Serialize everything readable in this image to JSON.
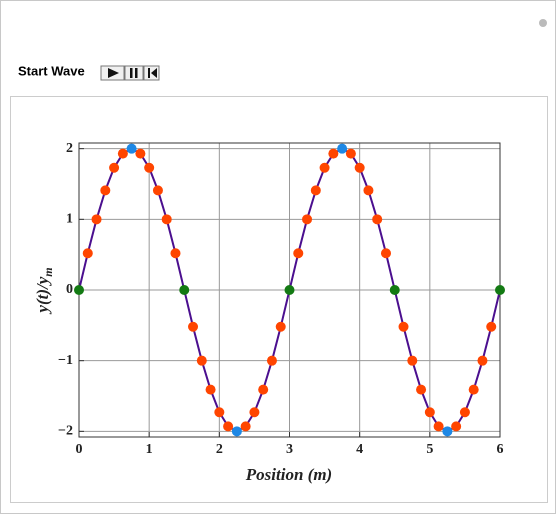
{
  "controls": {
    "label": "Start Wave"
  },
  "chart_data": {
    "type": "line",
    "xlabel": "Position (m)",
    "ylabel": "y(t)/y",
    "ylabel_sub": "m",
    "xlim": [
      0,
      6
    ],
    "ylim": [
      -2.08,
      2.08
    ],
    "xticks": [
      0,
      1,
      2,
      3,
      4,
      5,
      6
    ],
    "yticks": [
      {
        "value": -2,
        "label": "−2"
      },
      {
        "value": -1,
        "label": "−1"
      },
      0,
      1,
      2
    ],
    "grid": true,
    "series": [
      {
        "color": "#4b0f8f",
        "x": [
          0,
          0.125,
          0.25,
          0.375,
          0.5,
          0.625,
          0.75,
          0.875,
          1,
          1.125,
          1.25,
          1.375,
          1.5,
          1.625,
          1.75,
          1.875,
          2,
          2.125,
          2.25,
          2.375,
          2.5,
          2.625,
          2.75,
          2.875,
          3,
          3.125,
          3.25,
          3.375,
          3.5,
          3.625,
          3.75,
          3.875,
          4,
          4.125,
          4.25,
          4.375,
          4.5,
          4.625,
          4.75,
          4.875,
          5,
          5.125,
          5.25,
          5.375,
          5.5,
          5.625,
          5.75,
          5.875,
          6
        ],
        "values": [
          0,
          0.52,
          1,
          1.41,
          1.73,
          1.93,
          2,
          1.93,
          1.73,
          1.41,
          1,
          0.52,
          0,
          -0.52,
          -1,
          -1.41,
          -1.73,
          -1.93,
          -2,
          -1.93,
          -1.73,
          -1.41,
          -1,
          -0.52,
          0,
          0.52,
          1,
          1.41,
          1.73,
          1.93,
          2,
          1.93,
          1.73,
          1.41,
          1,
          0.52,
          0,
          -0.52,
          -1,
          -1.41,
          -1.73,
          -1.93,
          -2,
          -1.93,
          -1.73,
          -1.41,
          -1,
          -0.52,
          0
        ],
        "marker_colors": [
          "#137a13",
          "#ff4500",
          "#ff4500",
          "#ff4500",
          "#ff4500",
          "#ff4500",
          "#1e88e5",
          "#ff4500",
          "#ff4500",
          "#ff4500",
          "#ff4500",
          "#ff4500",
          "#137a13",
          "#ff4500",
          "#ff4500",
          "#ff4500",
          "#ff4500",
          "#ff4500",
          "#1e88e5",
          "#ff4500",
          "#ff4500",
          "#ff4500",
          "#ff4500",
          "#ff4500",
          "#137a13",
          "#ff4500",
          "#ff4500",
          "#ff4500",
          "#ff4500",
          "#ff4500",
          "#1e88e5",
          "#ff4500",
          "#ff4500",
          "#ff4500",
          "#ff4500",
          "#ff4500",
          "#137a13",
          "#ff4500",
          "#ff4500",
          "#ff4500",
          "#ff4500",
          "#ff4500",
          "#1e88e5",
          "#ff4500",
          "#ff4500",
          "#ff4500",
          "#ff4500",
          "#ff4500",
          "#137a13"
        ]
      }
    ]
  }
}
